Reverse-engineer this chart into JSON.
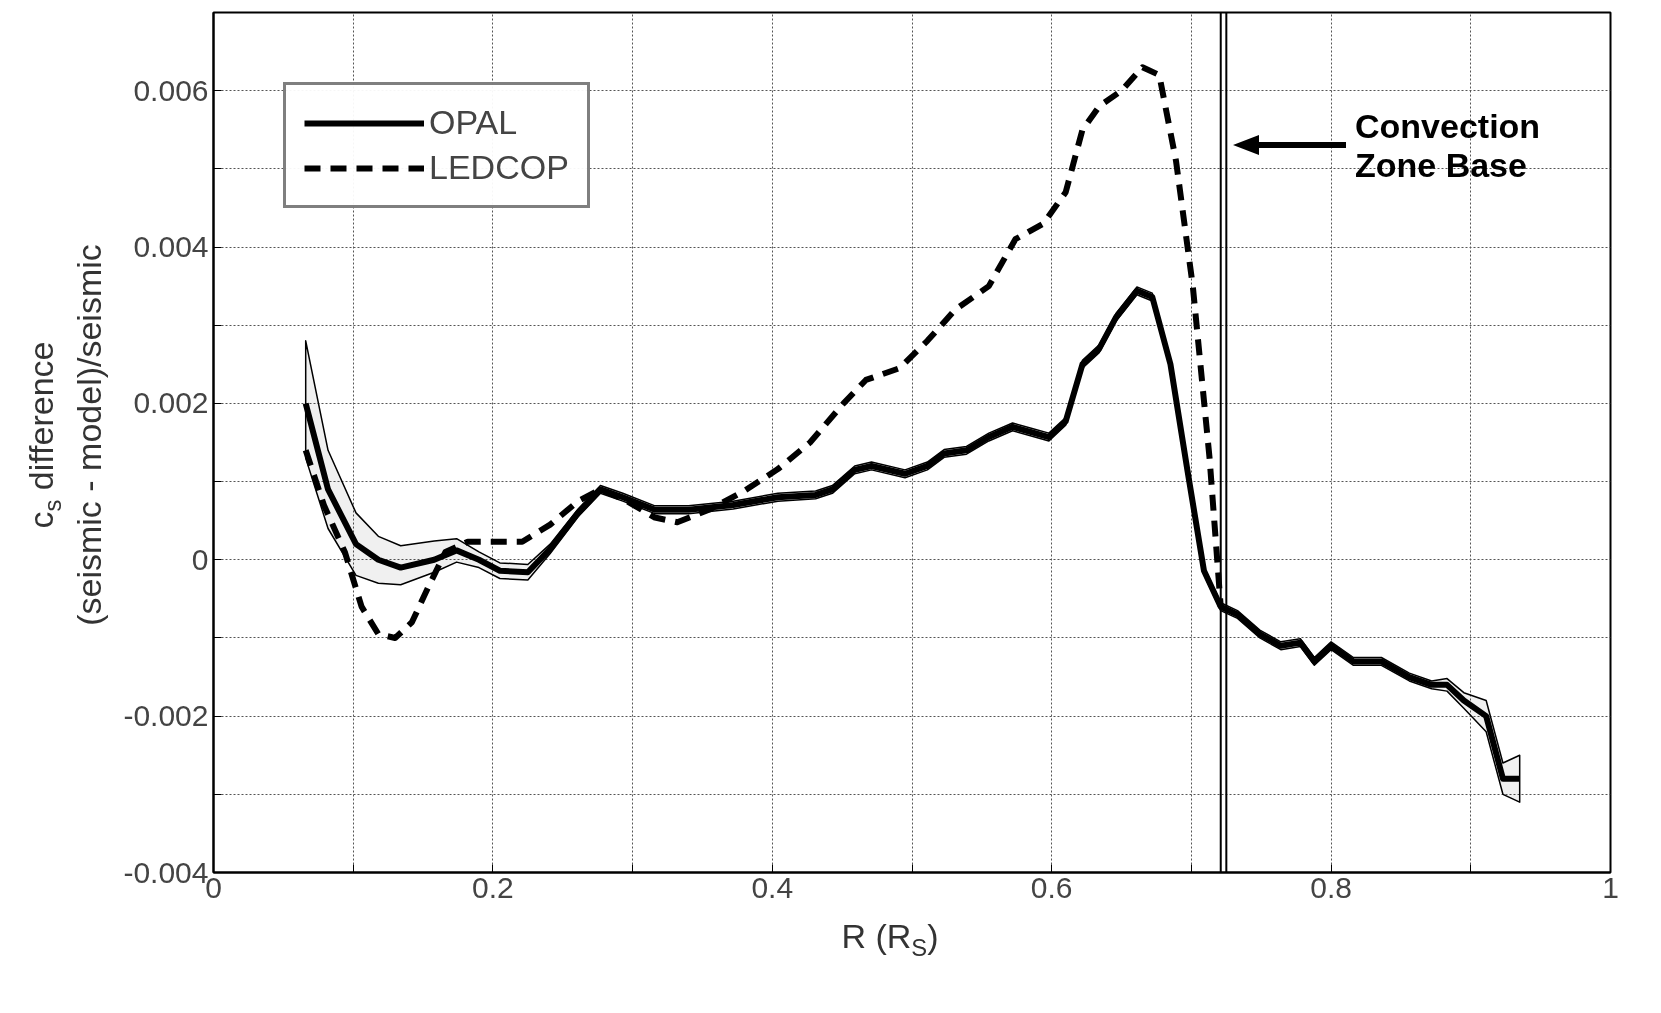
{
  "chart_data": {
    "type": "line",
    "xlabel": "R (R$_{S}$)",
    "ylabel": "c$_{s}$ difference\n(seismic - model)/seismic",
    "xlim": [
      0,
      1
    ],
    "ylim": [
      -0.004,
      0.007
    ],
    "xticks": [
      0,
      {
        "value": 0.1,
        "label": null
      },
      0.2,
      {
        "value": 0.3,
        "label": null
      },
      0.4,
      {
        "value": 0.5,
        "label": null
      },
      0.6,
      {
        "value": 0.7,
        "label": null
      },
      0.8,
      {
        "value": 0.9,
        "label": null
      },
      1
    ],
    "yticks": [
      -0.004,
      {
        "value": -0.003,
        "label": null
      },
      -0.002,
      {
        "value": -0.001,
        "label": null
      },
      0,
      {
        "value": 0.001,
        "label": null
      },
      0.002,
      {
        "value": 0.003,
        "label": null
      },
      0.004,
      {
        "value": 0.005,
        "label": null
      },
      0.006,
      {
        "value": 0.007,
        "label": null
      }
    ],
    "grid": true,
    "legend": "top left",
    "series": [
      {
        "name": "OPAL",
        "color": "#000000",
        "line_style": "solid",
        "x": [
          0.066,
          0.082,
          0.102,
          0.118,
          0.134,
          0.158,
          0.174,
          0.19,
          0.205,
          0.225,
          0.241,
          0.261,
          0.277,
          0.293,
          0.316,
          0.34,
          0.372,
          0.404,
          0.431,
          0.443,
          0.459,
          0.471,
          0.495,
          0.511,
          0.523,
          0.539,
          0.555,
          0.572,
          0.586,
          0.598,
          0.61,
          0.622,
          0.634,
          0.646,
          0.661,
          0.672,
          0.685,
          0.697,
          0.709,
          0.721,
          0.733,
          0.749,
          0.764,
          0.778,
          0.788,
          0.8,
          0.816,
          0.836,
          0.856,
          0.872,
          0.883,
          0.895,
          0.911,
          0.923,
          0.935
        ],
        "values": [
          0.002,
          0.0009,
          0.0002,
          0.0,
          -0.0001,
          0.0,
          0.00012,
          0.0,
          -0.00014,
          -0.00016,
          0.00014,
          0.0006,
          0.0009,
          0.0008,
          0.00064,
          0.00064,
          0.0007,
          0.0008,
          0.00083,
          0.0009,
          0.00115,
          0.0012,
          0.0011,
          0.0012,
          0.00136,
          0.0014,
          0.00157,
          0.0017,
          0.00163,
          0.00157,
          0.00177,
          0.0025,
          0.0027,
          0.0031,
          0.00344,
          0.00336,
          0.0025,
          0.00116,
          -0.00014,
          -0.0006,
          -0.0007,
          -0.00095,
          -0.0011,
          -0.00106,
          -0.0013,
          -0.0011,
          -0.0013,
          -0.0013,
          -0.0015,
          -0.0016,
          -0.0016,
          -0.0018,
          -0.002,
          -0.0028,
          -0.0028
        ],
        "upper": [
          0.0028,
          0.0014,
          0.0006,
          0.0003,
          0.00018,
          0.00024,
          0.00027,
          0.0001,
          -4e-05,
          -6e-05,
          0.0002,
          0.00065,
          0.00095,
          0.00085,
          0.00069,
          0.00069,
          0.00075,
          0.00085,
          0.00088,
          0.00095,
          0.0012,
          0.00125,
          0.00115,
          0.00125,
          0.00141,
          0.00145,
          0.00162,
          0.00175,
          0.00168,
          0.00162,
          0.00182,
          0.00255,
          0.00275,
          0.00315,
          0.00349,
          0.00341,
          0.00255,
          0.00121,
          -9e-05,
          -0.00055,
          -0.00065,
          -0.0009,
          -0.00105,
          -0.00101,
          -0.00125,
          -0.00105,
          -0.00125,
          -0.00125,
          -0.00145,
          -0.00155,
          -0.00152,
          -0.0017,
          -0.0018,
          -0.0026,
          -0.0025
        ],
        "lower": [
          0.0013,
          0.0004,
          -0.0002,
          -0.0003,
          -0.00032,
          -0.00016,
          -3e-05,
          -0.0001,
          -0.00024,
          -0.00026,
          8e-05,
          0.00055,
          0.00085,
          0.00075,
          0.00059,
          0.00059,
          0.00065,
          0.00075,
          0.00078,
          0.00085,
          0.0011,
          0.00115,
          0.00105,
          0.00115,
          0.00131,
          0.00135,
          0.00152,
          0.00165,
          0.00158,
          0.00152,
          0.00172,
          0.00245,
          0.00265,
          0.00305,
          0.00339,
          0.00331,
          0.00245,
          0.00111,
          -0.00019,
          -0.00065,
          -0.00075,
          -0.001,
          -0.00115,
          -0.00111,
          -0.00135,
          -0.00115,
          -0.00135,
          -0.00135,
          -0.00155,
          -0.00165,
          -0.00168,
          -0.0019,
          -0.0022,
          -0.003,
          -0.0031
        ]
      },
      {
        "name": "LEDCOP",
        "color": "#000000",
        "line_style": "dashed",
        "x": [
          0.066,
          0.079,
          0.094,
          0.106,
          0.118,
          0.13,
          0.142,
          0.154,
          0.166,
          0.182,
          0.201,
          0.221,
          0.241,
          0.261,
          0.277,
          0.293,
          0.316,
          0.332,
          0.356,
          0.38,
          0.404,
          0.427,
          0.451,
          0.467,
          0.491,
          0.511,
          0.531,
          0.555,
          0.574,
          0.594,
          0.61,
          0.622,
          0.634,
          0.65,
          0.665,
          0.677,
          0.689,
          0.701,
          0.713,
          0.721
        ],
        "values": [
          0.0014,
          0.0007,
          0.0001,
          -0.0006,
          -0.00095,
          -0.001,
          -0.0008,
          -0.00034,
          0.0001,
          0.00023,
          0.00023,
          0.00023,
          0.00045,
          0.00075,
          0.0009,
          0.00078,
          0.00054,
          0.00048,
          0.00065,
          0.00088,
          0.00116,
          0.0015,
          0.002,
          0.0023,
          0.00245,
          0.0028,
          0.0032,
          0.0035,
          0.0041,
          0.0043,
          0.0047,
          0.0055,
          0.0058,
          0.006,
          0.0063,
          0.0062,
          0.0051,
          0.0035,
          0.0013,
          -0.0006
        ]
      }
    ],
    "ref_lines": [
      {
        "axis": "x",
        "value": 0.721,
        "label": null,
        "color": "#000000"
      },
      {
        "axis": "x",
        "value": 0.725,
        "label": null,
        "color": "#000000"
      }
    ],
    "annotations": [
      "Convection\nZone Base"
    ]
  }
}
